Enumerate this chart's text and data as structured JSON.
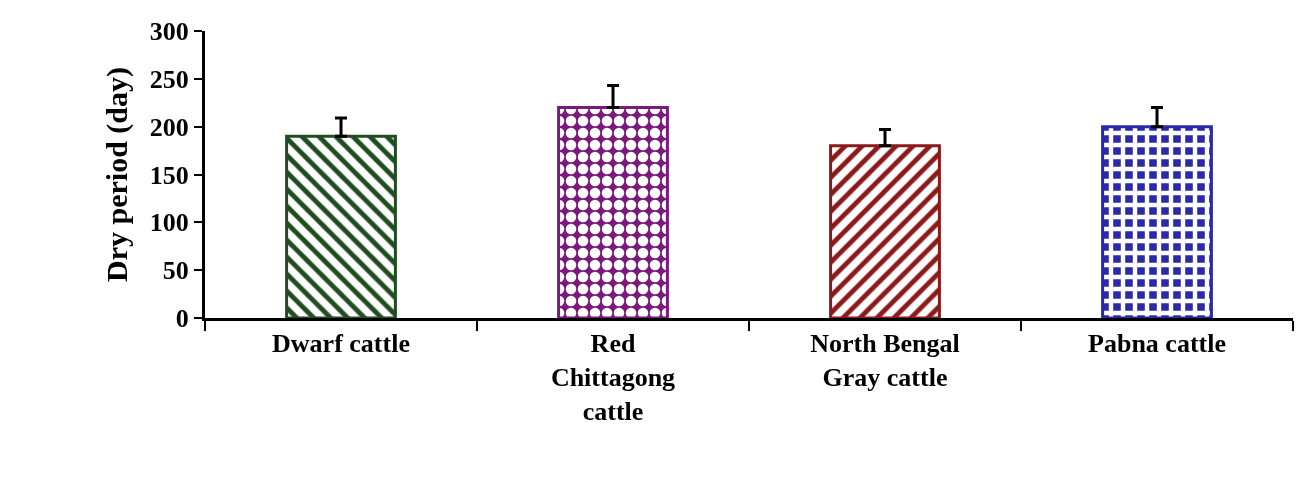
{
  "chart_data": {
    "type": "bar",
    "ylabel": "Dry period (day)",
    "categories": [
      "Dwarf cattle",
      "Red\nChittagong\ncattle",
      "North Bengal\nGray cattle",
      "Pabna cattle"
    ],
    "values": [
      190,
      220,
      180,
      200
    ],
    "errors": [
      19,
      23,
      17,
      20
    ],
    "colors": [
      "#1f4d1f",
      "#7a1a7a",
      "#8b1a1a",
      "#2a2aa8"
    ],
    "ylim": [
      0,
      300
    ],
    "yticks": [
      0,
      50,
      100,
      150,
      200,
      250,
      300
    ]
  }
}
